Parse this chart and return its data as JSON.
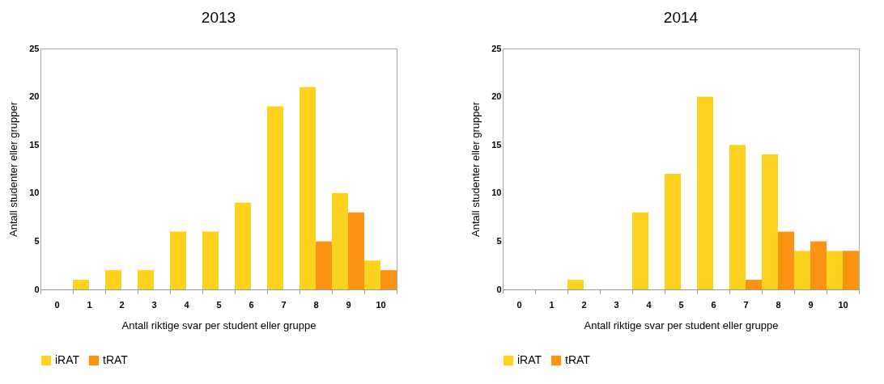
{
  "chart_data": [
    {
      "type": "bar",
      "title": "2013",
      "xlabel": "Antall riktige svar per student eller gruppe",
      "ylabel": "Antall studenter eller grupper",
      "categories": [
        "0",
        "1",
        "2",
        "3",
        "4",
        "5",
        "6",
        "7",
        "8",
        "9",
        "10"
      ],
      "series": [
        {
          "name": "iRAT",
          "color": "#fdd320",
          "values": [
            0,
            1,
            2,
            2,
            6,
            6,
            9,
            19,
            21,
            10,
            3
          ]
        },
        {
          "name": "tRAT",
          "color": "#fb9414",
          "values": [
            0,
            0,
            0,
            0,
            0,
            0,
            0,
            0,
            5,
            8,
            2
          ]
        }
      ],
      "ylim": [
        0,
        25
      ],
      "yticks": [
        0,
        5,
        10,
        15,
        20,
        25
      ],
      "grid": false,
      "legend": "bottom"
    },
    {
      "type": "bar",
      "title": "2014",
      "xlabel": "Antall riktige svar per student eller gruppe",
      "ylabel": "Antall studenter eller grupper",
      "categories": [
        "0",
        "1",
        "2",
        "3",
        "4",
        "5",
        "6",
        "7",
        "8",
        "9",
        "10"
      ],
      "series": [
        {
          "name": "iRAT",
          "color": "#fdd320",
          "values": [
            0,
            0,
            1,
            0,
            8,
            12,
            20,
            15,
            14,
            4,
            4
          ]
        },
        {
          "name": "tRAT",
          "color": "#fb9414",
          "values": [
            0,
            0,
            0,
            0,
            0,
            0,
            0,
            1,
            6,
            5,
            4
          ]
        }
      ],
      "ylim": [
        0,
        25
      ],
      "yticks": [
        0,
        5,
        10,
        15,
        20,
        25
      ],
      "grid": false,
      "legend": "bottom"
    }
  ]
}
